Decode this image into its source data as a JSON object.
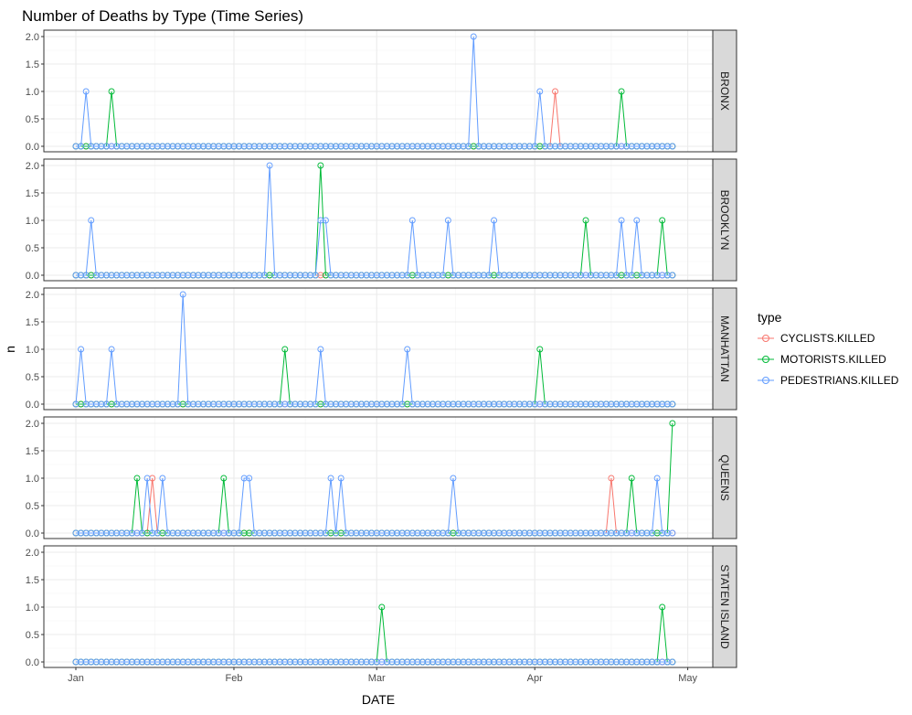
{
  "chart_data": {
    "type": "line",
    "title": "Number of Deaths by Type (Time Series)",
    "xlabel": "DATE",
    "ylabel": "n",
    "x_range": [
      "2014-01-01",
      "2014-04-28"
    ],
    "x_ticks": [
      {
        "date": "2014-01-01",
        "label": "Jan"
      },
      {
        "date": "2014-02-01",
        "label": "Feb"
      },
      {
        "date": "2014-03-01",
        "label": "Mar"
      },
      {
        "date": "2014-04-01",
        "label": "Apr"
      },
      {
        "date": "2014-05-01",
        "label": "May"
      }
    ],
    "y_ticks": [
      "0.0",
      "0.5",
      "1.0",
      "1.5",
      "2.0"
    ],
    "ylim": [
      0,
      2
    ],
    "grid": true,
    "legend": {
      "title": "type",
      "position": "right"
    },
    "series": [
      {
        "name": "CYCLISTS.KILLED",
        "color": "#F8766D"
      },
      {
        "name": "MOTORISTS.KILLED",
        "color": "#00BA38"
      },
      {
        "name": "PEDESTRIANS.KILLED",
        "color": "#619CFF"
      }
    ],
    "panels": [
      {
        "label": "BRONX",
        "nonzero": {
          "CYCLISTS.KILLED": [
            [
              "2014-04-05",
              1
            ]
          ],
          "MOTORISTS.KILLED": [
            [
              "2014-01-08",
              1
            ],
            [
              "2014-04-18",
              1
            ]
          ],
          "PEDESTRIANS.KILLED": [
            [
              "2014-01-03",
              1
            ],
            [
              "2014-03-20",
              2
            ],
            [
              "2014-04-02",
              1
            ]
          ]
        }
      },
      {
        "label": "BROOKLYN",
        "nonzero": {
          "CYCLISTS.KILLED": [],
          "MOTORISTS.KILLED": [
            [
              "2014-02-18",
              2
            ],
            [
              "2014-04-11",
              1
            ],
            [
              "2014-04-26",
              1
            ]
          ],
          "PEDESTRIANS.KILLED": [
            [
              "2014-01-04",
              1
            ],
            [
              "2014-02-08",
              2
            ],
            [
              "2014-02-18",
              1
            ],
            [
              "2014-02-19",
              1
            ],
            [
              "2014-03-08",
              1
            ],
            [
              "2014-03-15",
              1
            ],
            [
              "2014-03-24",
              1
            ],
            [
              "2014-04-18",
              1
            ],
            [
              "2014-04-21",
              1
            ]
          ]
        }
      },
      {
        "label": "MANHATTAN",
        "nonzero": {
          "CYCLISTS.KILLED": [],
          "MOTORISTS.KILLED": [
            [
              "2014-02-11",
              1
            ],
            [
              "2014-04-02",
              1
            ]
          ],
          "PEDESTRIANS.KILLED": [
            [
              "2014-01-02",
              1
            ],
            [
              "2014-01-08",
              1
            ],
            [
              "2014-01-22",
              2
            ],
            [
              "2014-02-18",
              1
            ],
            [
              "2014-03-07",
              1
            ]
          ]
        }
      },
      {
        "label": "QUEENS",
        "nonzero": {
          "CYCLISTS.KILLED": [
            [
              "2014-01-16",
              1
            ],
            [
              "2014-04-16",
              1
            ]
          ],
          "MOTORISTS.KILLED": [
            [
              "2014-01-13",
              1
            ],
            [
              "2014-01-30",
              1
            ],
            [
              "2014-04-20",
              1
            ],
            [
              "2014-04-28",
              2
            ]
          ],
          "PEDESTRIANS.KILLED": [
            [
              "2014-01-15",
              1
            ],
            [
              "2014-01-18",
              1
            ],
            [
              "2014-02-03",
              1
            ],
            [
              "2014-02-04",
              1
            ],
            [
              "2014-02-20",
              1
            ],
            [
              "2014-02-22",
              1
            ],
            [
              "2014-03-16",
              1
            ],
            [
              "2014-04-25",
              1
            ]
          ]
        }
      },
      {
        "label": "STATEN ISLAND",
        "nonzero": {
          "CYCLISTS.KILLED": [],
          "MOTORISTS.KILLED": [
            [
              "2014-03-02",
              1
            ],
            [
              "2014-04-26",
              1
            ]
          ],
          "PEDESTRIANS.KILLED": []
        }
      }
    ]
  }
}
